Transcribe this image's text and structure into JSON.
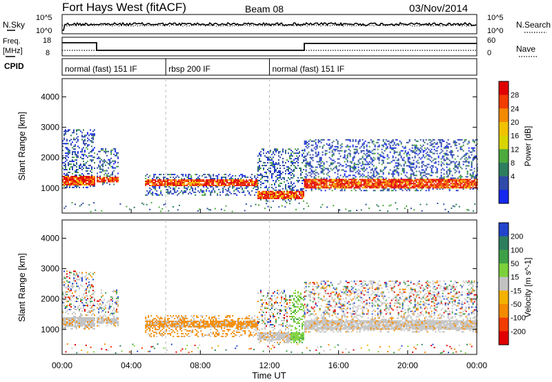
{
  "header": {
    "radar": "Fort Hays West (fitACF)",
    "beam": "Beam 08",
    "date": "03/Nov/2014"
  },
  "noise_panel": {
    "left_label": "N.Sky",
    "right_label": "N.Search",
    "ticks": [
      "10^5",
      "10^0"
    ],
    "right_ticks": [
      "10^5",
      "10^0"
    ]
  },
  "freq_panel": {
    "left_label_line1": "Freq.",
    "left_label_line2": "[MHz]",
    "left_ticks": [
      "18",
      "8"
    ],
    "right_label": "Nave",
    "right_ticks": [
      "60",
      "0"
    ]
  },
  "cpid_panel": {
    "label": "CPID",
    "segments": [
      {
        "label": "normal (fast) 151 IF",
        "start_hour": 0,
        "end_hour": 6
      },
      {
        "label": "rbsp 200 IF",
        "start_hour": 6,
        "end_hour": 12
      },
      {
        "label": "normal (fast) 151 IF",
        "start_hour": 12,
        "end_hour": 24
      }
    ]
  },
  "chart_data": [
    {
      "type": "heatmap",
      "title": "",
      "ylabel": "Slant Range [km]",
      "xlabel": "",
      "x_ticks": [
        "00:00",
        "04:00",
        "08:00",
        "12:00",
        "16:00",
        "20:00",
        "00:00"
      ],
      "y_ticks": [
        1000,
        2000,
        3000,
        4000
      ],
      "xlim": [
        0,
        24
      ],
      "ylim": [
        180,
        4600
      ],
      "colorbar": {
        "label": "Power [dB]",
        "ticks": [
          "28",
          "24",
          "20",
          "16",
          "12",
          "8",
          "4"
        ],
        "colors": [
          "#e00000",
          "#f23c00",
          "#f48a00",
          "#f2c200",
          "#d8d400",
          "#4caa3c",
          "#2e7e5e",
          "#2f4aa8",
          "#1428ee"
        ]
      },
      "bands": [
        {
          "start": 0.0,
          "end": 1.9,
          "lo": 1000,
          "hi": 2900,
          "core_lo": 1050,
          "core_hi": 1400
        },
        {
          "start": 2.0,
          "end": 3.2,
          "lo": 1100,
          "hi": 2300,
          "core_lo": 1150,
          "core_hi": 1350
        },
        {
          "start": 4.8,
          "end": 11.3,
          "lo": 750,
          "hi": 1450,
          "core_lo": 1050,
          "core_hi": 1250
        },
        {
          "start": 11.3,
          "end": 14.0,
          "lo": 550,
          "hi": 2300,
          "core_lo": 600,
          "core_hi": 900
        },
        {
          "start": 14.0,
          "end": 24.0,
          "lo": 900,
          "hi": 2600,
          "core_lo": 950,
          "core_hi": 1300
        }
      ]
    },
    {
      "type": "heatmap",
      "title": "",
      "ylabel": "Slant Range [km]",
      "xlabel": "Time UT",
      "x_ticks": [
        "00:00",
        "04:00",
        "08:00",
        "12:00",
        "16:00",
        "20:00",
        "00:00"
      ],
      "y_ticks": [
        1000,
        2000,
        3000,
        4000
      ],
      "xlim": [
        0,
        24
      ],
      "ylim": [
        180,
        4600
      ],
      "colorbar": {
        "label": "Velocity [m s^-1]",
        "ticks": [
          "200",
          "100",
          "50",
          "15",
          "-15",
          "-50",
          "-100",
          "-200"
        ],
        "colors": [
          "#2244cc",
          "#2e7e5e",
          "#3ea046",
          "#7cd03a",
          "#c2c2c2",
          "#f4b200",
          "#f48a00",
          "#f23c00",
          "#e00000"
        ]
      },
      "bands": [
        {
          "start": 0.0,
          "end": 1.9,
          "lo": 1000,
          "hi": 2900,
          "core_lo": 1050,
          "core_hi": 1400
        },
        {
          "start": 2.0,
          "end": 3.2,
          "lo": 1100,
          "hi": 2300,
          "core_lo": 1150,
          "core_hi": 1350
        },
        {
          "start": 4.8,
          "end": 11.3,
          "lo": 750,
          "hi": 1450,
          "core_lo": 1050,
          "core_hi": 1250
        },
        {
          "start": 11.3,
          "end": 14.0,
          "lo": 550,
          "hi": 2300,
          "core_lo": 600,
          "core_hi": 900
        },
        {
          "start": 14.0,
          "end": 24.0,
          "lo": 900,
          "hi": 2600,
          "core_lo": 950,
          "core_hi": 1300
        }
      ]
    }
  ]
}
